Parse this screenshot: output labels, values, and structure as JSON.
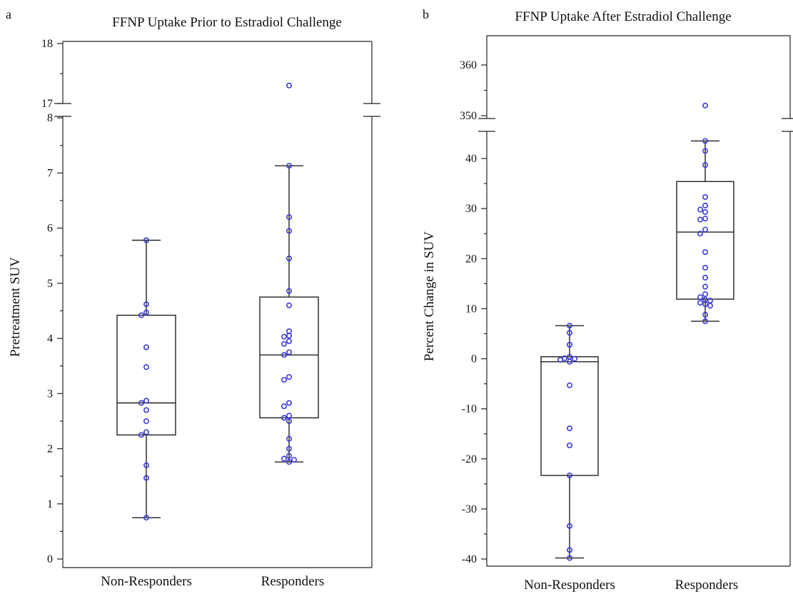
{
  "panels": [
    {
      "panel_label": "a",
      "title": "FFNP Uptake Prior to Estradiol Challenge",
      "ylabel": "Pretreatment SUV"
    },
    {
      "panel_label": "b",
      "title": "FFNP Uptake After Estradiol Challenge",
      "ylabel": "Percent Change in SUV"
    }
  ],
  "colors": {
    "points": "#3b3bd6",
    "lines": "#222222"
  },
  "chart_data": [
    {
      "type": "box",
      "title": "FFNP Uptake Prior to Estradiol Challenge",
      "xlabel": "",
      "ylabel": "Pretreatment SUV",
      "categories": [
        "Non-Responders",
        "Responders"
      ],
      "y_axis_break": {
        "lower_range": [
          0,
          8
        ],
        "upper_range": [
          17,
          18
        ]
      },
      "lower_ticks": [
        "0",
        "1",
        "2",
        "3",
        "4",
        "5",
        "6",
        "7",
        "8"
      ],
      "upper_ticks": [
        "17",
        "18"
      ],
      "groups": [
        {
          "name": "Non-Responders",
          "whisker_low": 0.75,
          "q1": 2.25,
          "median": 2.83,
          "q3": 4.42,
          "whisker_high": 5.78,
          "points": [
            5.78,
            4.62,
            4.47,
            4.42,
            3.84,
            3.48,
            2.87,
            2.83,
            2.7,
            2.5,
            2.3,
            2.25,
            1.7,
            1.47,
            0.75
          ]
        },
        {
          "name": "Responders",
          "whisker_low": 1.76,
          "q1": 2.56,
          "median": 3.7,
          "q3": 4.75,
          "whisker_high": 7.13,
          "points": [
            17.3,
            7.13,
            6.2,
            5.95,
            5.45,
            4.86,
            4.6,
            4.13,
            4.05,
            4.03,
            3.95,
            3.9,
            3.75,
            3.7,
            3.3,
            3.25,
            2.83,
            2.77,
            2.6,
            2.56,
            2.5,
            2.18,
            2.0,
            1.87,
            1.82,
            1.8,
            1.76
          ]
        }
      ]
    },
    {
      "type": "box",
      "title": "FFNP Uptake After Estradiol Challenge",
      "xlabel": "",
      "ylabel": "Percent Change in SUV",
      "categories": [
        "Non-Responders",
        "Responders"
      ],
      "y_axis_break": {
        "lower_range": [
          -40,
          46
        ],
        "upper_range": [
          349,
          364
        ]
      },
      "lower_ticks": [
        "-40",
        "-30",
        "-20",
        "-10",
        "0",
        "10",
        "20",
        "30",
        "40"
      ],
      "upper_ticks": [
        "350",
        "360"
      ],
      "groups": [
        {
          "name": "Non-Responders",
          "whisker_low": -39.8,
          "q1": -23.3,
          "median": -0.6,
          "q3": 0.4,
          "whisker_high": 6.6,
          "points": [
            6.6,
            5.2,
            2.8,
            0.4,
            0.1,
            0.0,
            -0.2,
            -0.6,
            -5.3,
            -13.9,
            -17.3,
            -23.3,
            -33.4,
            -38.2,
            -39.8
          ]
        },
        {
          "name": "Responders",
          "whisker_low": 7.5,
          "q1": 11.9,
          "median": 25.3,
          "q3": 35.4,
          "whisker_high": 43.5,
          "points": [
            352,
            43.5,
            41.5,
            38.7,
            32.3,
            30.6,
            29.8,
            29.3,
            28.0,
            27.8,
            25.8,
            25.0,
            21.3,
            18.2,
            16.2,
            14.4,
            12.9,
            12.3,
            11.8,
            11.6,
            11.2,
            10.9,
            10.6,
            8.8,
            7.5
          ]
        }
      ]
    }
  ]
}
